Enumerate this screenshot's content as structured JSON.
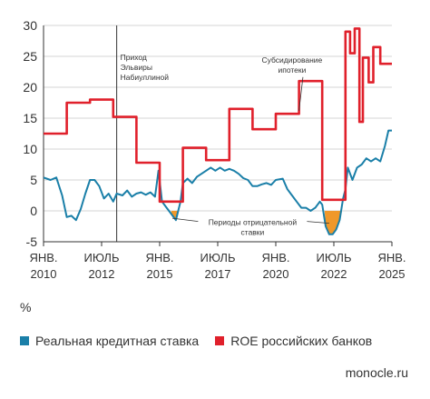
{
  "chart_data": {
    "type": "line",
    "unit": "%",
    "ylim": [
      -5,
      30
    ],
    "yticks": [
      -5,
      0,
      5,
      10,
      15,
      20,
      25,
      30
    ],
    "xlim": [
      2010,
      2025
    ],
    "x_ticks": [
      {
        "x": 2010,
        "line1": "ЯНВ.",
        "line2": "2010"
      },
      {
        "x": 2012.5,
        "line1": "ИЮЛЬ",
        "line2": "2012"
      },
      {
        "x": 2015,
        "line1": "ЯНВ.",
        "line2": "2015"
      },
      {
        "x": 2017.5,
        "line1": "ИЮЛЬ",
        "line2": "2017"
      },
      {
        "x": 2020,
        "line1": "ЯНВ.",
        "line2": "2020"
      },
      {
        "x": 2022.5,
        "line1": "ИЮЛЬ",
        "line2": "2022"
      },
      {
        "x": 2025,
        "line1": "ЯНВ.",
        "line2": "2025"
      }
    ],
    "grid": "horizontal",
    "series": [
      {
        "name": "Реальная кредитная ставка",
        "color": "#1a7fa8",
        "points": [
          [
            2010,
            5.4
          ],
          [
            2010.3,
            5
          ],
          [
            2010.55,
            5.4
          ],
          [
            2010.8,
            2.5
          ],
          [
            2011.0,
            -1
          ],
          [
            2011.2,
            -0.8
          ],
          [
            2011.4,
            -1.5
          ],
          [
            2011.6,
            0.3
          ],
          [
            2011.8,
            2.8
          ],
          [
            2012.0,
            5
          ],
          [
            2012.2,
            5
          ],
          [
            2012.4,
            4
          ],
          [
            2012.6,
            2
          ],
          [
            2012.8,
            2.8
          ],
          [
            2013.0,
            1.5
          ],
          [
            2013.15,
            2.8
          ],
          [
            2013.4,
            2.5
          ],
          [
            2013.6,
            3.3
          ],
          [
            2013.8,
            2.3
          ],
          [
            2014.0,
            2.8
          ],
          [
            2014.2,
            3
          ],
          [
            2014.4,
            2.6
          ],
          [
            2014.6,
            3
          ],
          [
            2014.8,
            2.3
          ],
          [
            2014.95,
            6.5
          ],
          [
            2015.1,
            1.5
          ],
          [
            2015.3,
            0.5
          ],
          [
            2015.5,
            -0.5
          ],
          [
            2015.7,
            -1.5
          ],
          [
            2015.9,
            1.5
          ],
          [
            2016.0,
            4.5
          ],
          [
            2016.2,
            5.2
          ],
          [
            2016.4,
            4.5
          ],
          [
            2016.6,
            5.5
          ],
          [
            2016.8,
            6
          ],
          [
            2017.0,
            6.5
          ],
          [
            2017.2,
            7
          ],
          [
            2017.4,
            6.5
          ],
          [
            2017.6,
            7
          ],
          [
            2017.8,
            6.5
          ],
          [
            2018.0,
            6.8
          ],
          [
            2018.2,
            6.5
          ],
          [
            2018.4,
            6
          ],
          [
            2018.6,
            5.3
          ],
          [
            2018.8,
            5
          ],
          [
            2019.0,
            4
          ],
          [
            2019.2,
            4
          ],
          [
            2019.4,
            4.3
          ],
          [
            2019.6,
            4.5
          ],
          [
            2019.8,
            4.2
          ],
          [
            2020.0,
            5
          ],
          [
            2020.3,
            5.2
          ],
          [
            2020.5,
            3.5
          ],
          [
            2020.7,
            2.5
          ],
          [
            2020.9,
            1.5
          ],
          [
            2021.1,
            0.5
          ],
          [
            2021.3,
            0.5
          ],
          [
            2021.5,
            0
          ],
          [
            2021.7,
            0.5
          ],
          [
            2021.9,
            1.5
          ],
          [
            2022.0,
            1
          ],
          [
            2022.15,
            -2.5
          ],
          [
            2022.3,
            -3.8
          ],
          [
            2022.45,
            -3.8
          ],
          [
            2022.6,
            -3
          ],
          [
            2022.75,
            -1.5
          ],
          [
            2022.9,
            2
          ],
          [
            2023.0,
            3.5
          ],
          [
            2023.1,
            7
          ],
          [
            2023.3,
            5
          ],
          [
            2023.5,
            7
          ],
          [
            2023.7,
            7.5
          ],
          [
            2023.9,
            8.5
          ],
          [
            2024.1,
            8
          ],
          [
            2024.3,
            8.5
          ],
          [
            2024.5,
            8
          ],
          [
            2024.7,
            10.5
          ],
          [
            2024.85,
            13
          ],
          [
            2025.0,
            13
          ]
        ]
      },
      {
        "name": "ROE российских банков",
        "color": "#e0202b",
        "points": [
          [
            2010,
            12.5
          ],
          [
            2011.0,
            12.5
          ],
          [
            2011.0,
            17.5
          ],
          [
            2012.0,
            17.5
          ],
          [
            2012.0,
            18
          ],
          [
            2013.0,
            18
          ],
          [
            2013.0,
            15.2
          ],
          [
            2014.0,
            15.2
          ],
          [
            2014.0,
            7.8
          ],
          [
            2015.0,
            7.8
          ],
          [
            2015.0,
            1.5
          ],
          [
            2016.0,
            1.5
          ],
          [
            2016.0,
            10.2
          ],
          [
            2017.0,
            10.2
          ],
          [
            2017.0,
            8.2
          ],
          [
            2018.0,
            8.2
          ],
          [
            2018.0,
            16.5
          ],
          [
            2019.0,
            16.5
          ],
          [
            2019.0,
            13.2
          ],
          [
            2020.0,
            13.2
          ],
          [
            2020.0,
            15.7
          ],
          [
            2021.0,
            15.7
          ],
          [
            2021.0,
            21
          ],
          [
            2022.0,
            21
          ],
          [
            2022.0,
            1.8
          ],
          [
            2023.0,
            1.8
          ],
          [
            2023.0,
            29
          ],
          [
            2023.2,
            29
          ],
          [
            2023.2,
            25.5
          ],
          [
            2023.4,
            25.5
          ],
          [
            2023.4,
            29.5
          ],
          [
            2023.6,
            29.5
          ],
          [
            2023.6,
            14.4
          ],
          [
            2023.75,
            14.4
          ],
          [
            2023.75,
            24.8
          ],
          [
            2024.0,
            24.8
          ],
          [
            2024.0,
            20.8
          ],
          [
            2024.2,
            20.8
          ],
          [
            2024.2,
            26.5
          ],
          [
            2024.5,
            26.5
          ],
          [
            2024.5,
            23.8
          ],
          [
            2025.0,
            23.8
          ]
        ]
      }
    ],
    "negative_fill": {
      "color": "#f0982a",
      "regions": [
        [
          [
            2015.5,
            0
          ],
          [
            2015.5,
            -0.5
          ],
          [
            2015.7,
            -1.5
          ],
          [
            2015.8,
            0
          ]
        ],
        [
          [
            2022.1,
            0
          ],
          [
            2022.15,
            -2.5
          ],
          [
            2022.3,
            -3.8
          ],
          [
            2022.45,
            -3.8
          ],
          [
            2022.6,
            -3
          ],
          [
            2022.75,
            -1.5
          ],
          [
            2022.85,
            0
          ]
        ]
      ]
    },
    "markers": [
      {
        "x": 2013.15,
        "label_lines": [
          "Приход",
          "Эльвиры",
          "Набиуллиной"
        ]
      }
    ],
    "annotations": [
      {
        "label_lines": [
          "Субсидирование",
          "ипотеки"
        ],
        "point_to": [
          2021.0,
          16.2
        ],
        "anchor": [
          2020.7,
          24
        ]
      },
      {
        "label_lines": [
          "Периоды отрицательной",
          "ставки"
        ],
        "point_to": [
          2015.55,
          -1.2
        ],
        "point_to_2": [
          2022.3,
          -2
        ],
        "anchor": [
          2019.0,
          -2.3
        ]
      }
    ],
    "legend_position": "bottom"
  },
  "legend": [
    {
      "label": "Реальная кредитная ставка",
      "color": "#1a7fa8"
    },
    {
      "label": "ROE российских банков",
      "color": "#e0202b"
    }
  ],
  "source": "monocle.ru"
}
